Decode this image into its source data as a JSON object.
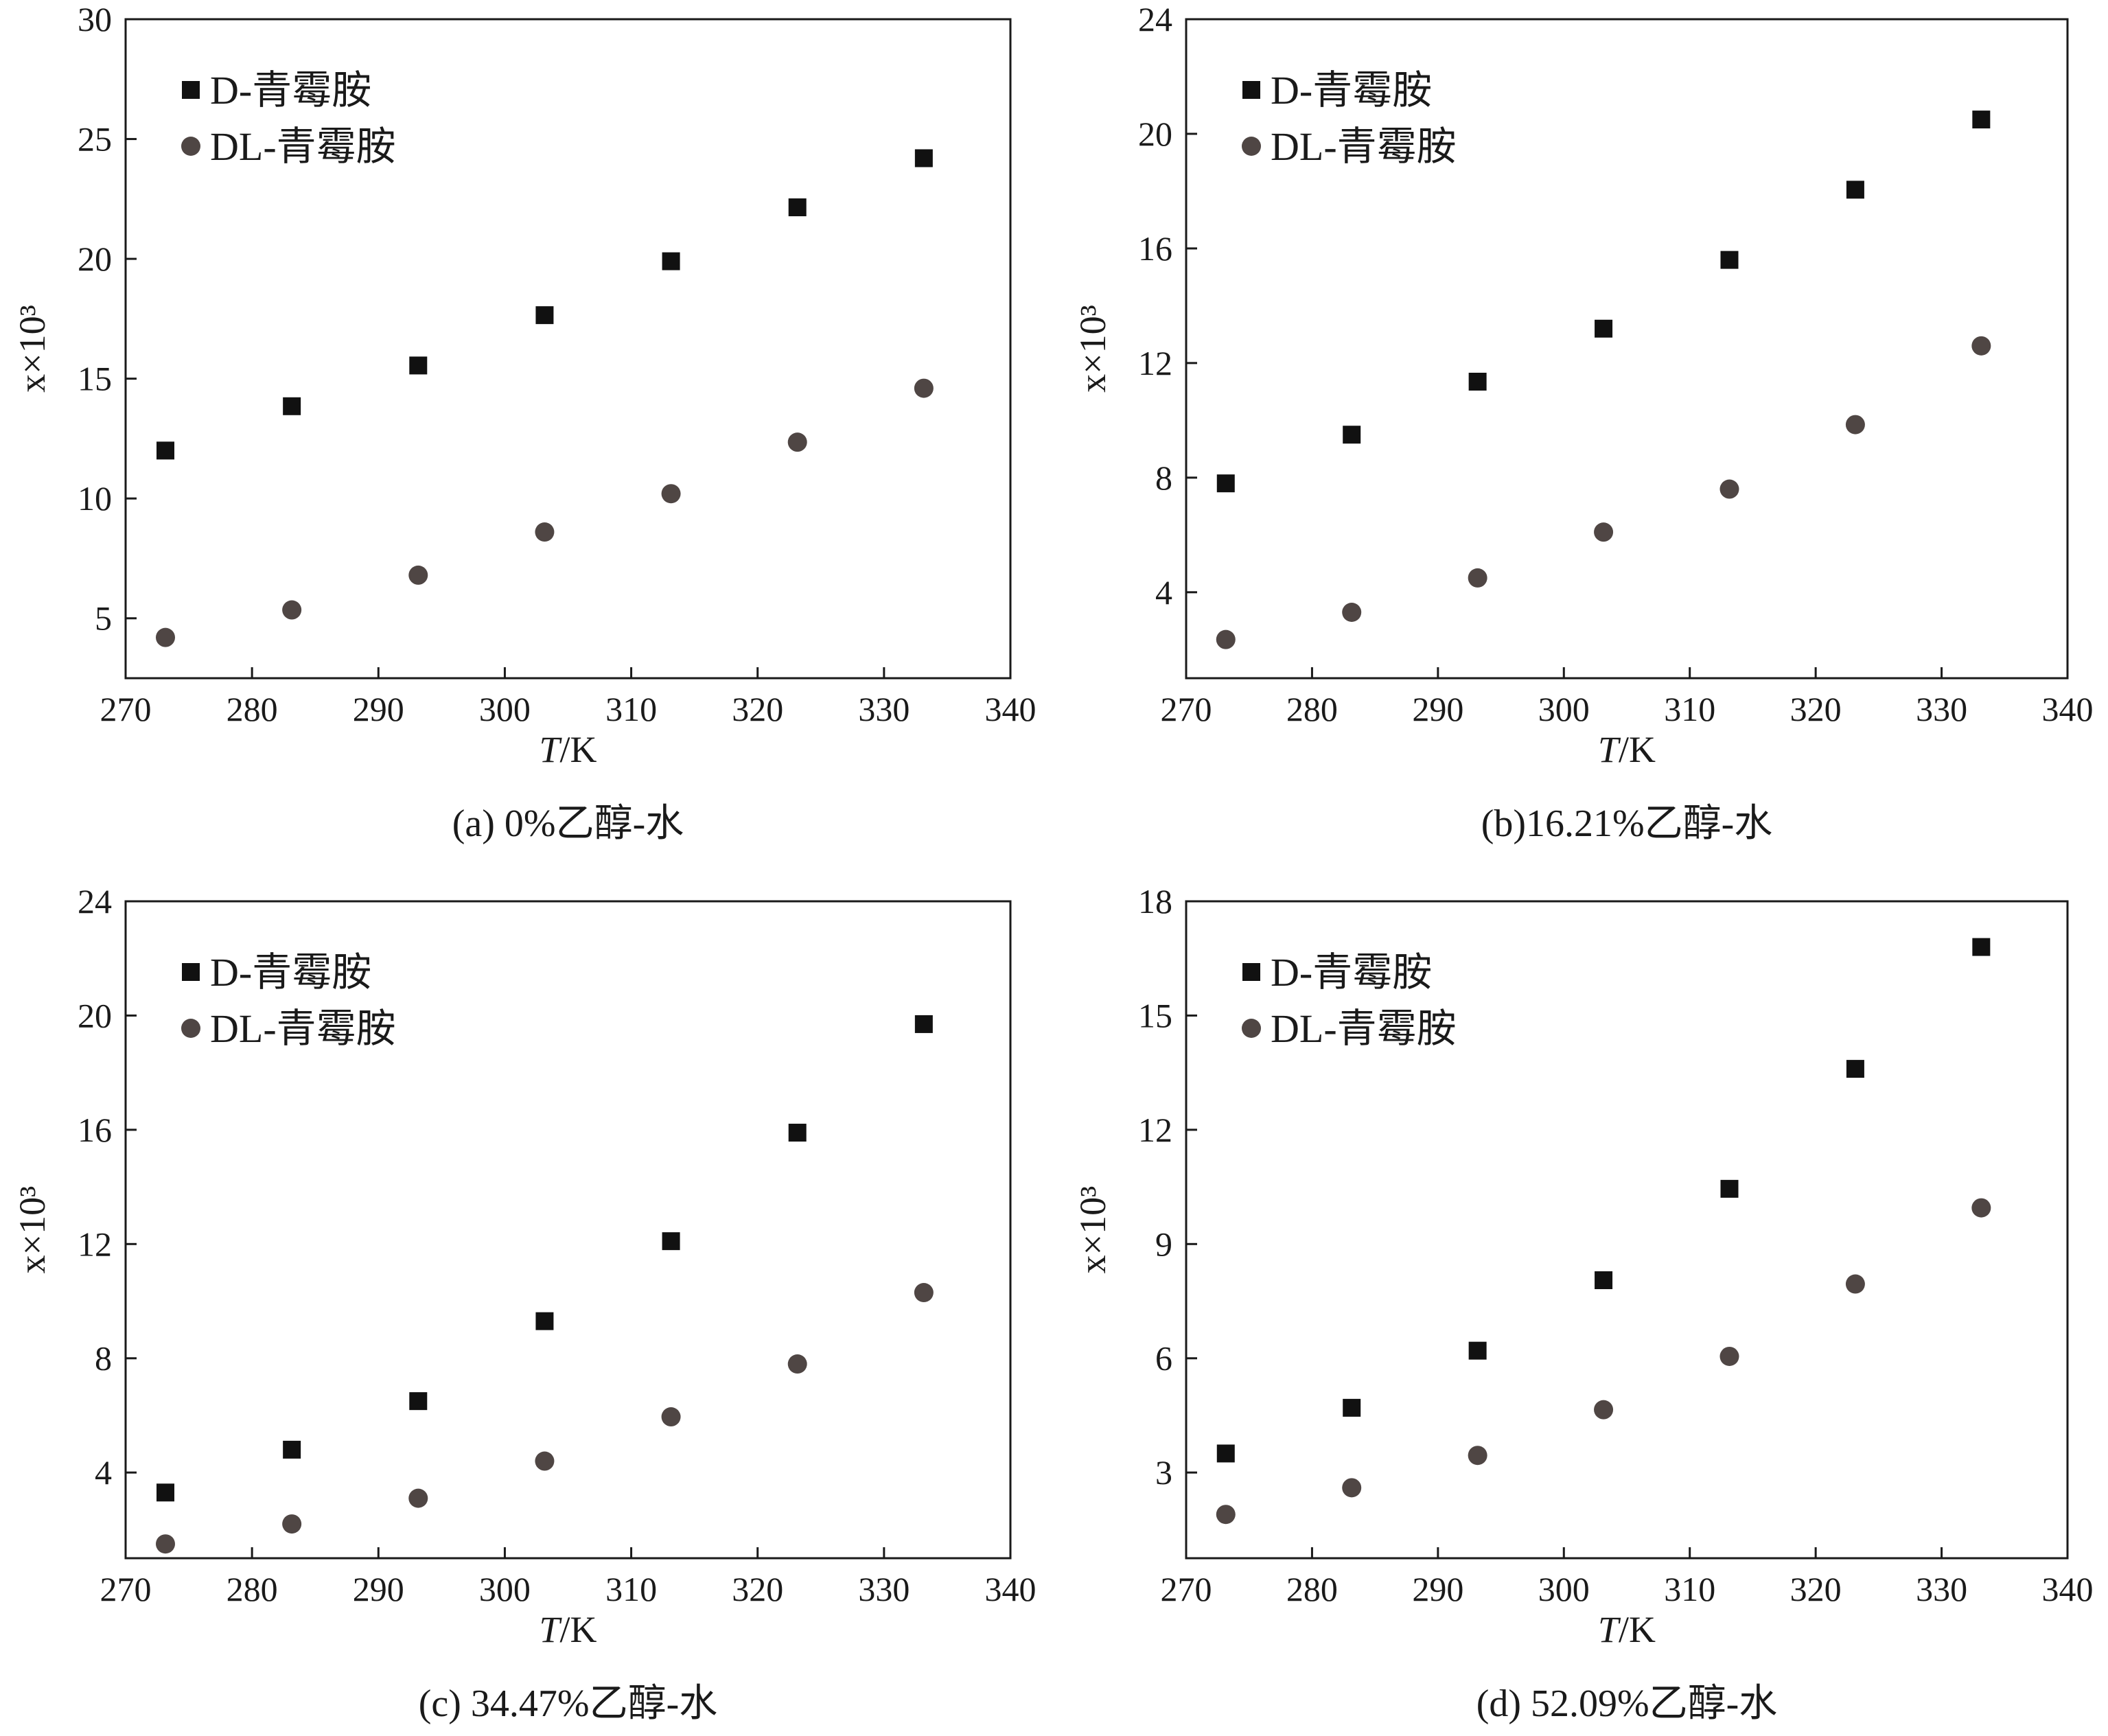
{
  "colors": {
    "series_square": "#111111",
    "series_circle": "#4f4644",
    "axis": "#1a1a1a"
  },
  "chart_data": [
    {
      "type": "scatter",
      "caption": "(a) 0%乙醇-水",
      "xlabel_italic": "T",
      "xlabel_rest": "/K",
      "ylabel": "x×10³",
      "xlim": [
        270,
        340
      ],
      "xticks": [
        270,
        280,
        290,
        300,
        310,
        320,
        330,
        340
      ],
      "ylim": [
        2.5,
        30
      ],
      "yticks": [
        5,
        10,
        15,
        20,
        25,
        30
      ],
      "legend_position": "top-left",
      "x": [
        273.15,
        283.15,
        293.15,
        303.15,
        313.15,
        323.15,
        333.15
      ],
      "series": [
        {
          "name": "D-青霉胺",
          "marker": "square",
          "values": [
            12.0,
            13.85,
            15.55,
            17.65,
            19.9,
            22.15,
            24.2
          ]
        },
        {
          "name": "DL-青霉胺",
          "marker": "circle",
          "values": [
            4.2,
            5.35,
            6.8,
            8.6,
            10.2,
            12.35,
            14.6
          ]
        }
      ]
    },
    {
      "type": "scatter",
      "caption": "(b)16.21%乙醇-水",
      "xlabel_italic": "T",
      "xlabel_rest": "/K",
      "ylabel": "x×10³",
      "xlim": [
        270,
        340
      ],
      "xticks": [
        270,
        280,
        290,
        300,
        310,
        320,
        330,
        340
      ],
      "ylim": [
        1.0,
        24
      ],
      "yticks": [
        4,
        8,
        12,
        16,
        20,
        24
      ],
      "legend_position": "top-left",
      "x": [
        273.15,
        283.15,
        293.15,
        303.15,
        313.15,
        323.15,
        333.15
      ],
      "series": [
        {
          "name": "D-青霉胺",
          "marker": "square",
          "values": [
            7.8,
            9.5,
            11.35,
            13.2,
            15.6,
            18.05,
            20.5
          ]
        },
        {
          "name": "DL-青霉胺",
          "marker": "circle",
          "values": [
            2.35,
            3.3,
            4.5,
            6.1,
            7.6,
            9.85,
            12.6
          ]
        }
      ]
    },
    {
      "type": "scatter",
      "caption": "(c) 34.47%乙醇-水",
      "xlabel_italic": "T",
      "xlabel_rest": "/K",
      "ylabel": "x×10³",
      "xlim": [
        270,
        340
      ],
      "xticks": [
        270,
        280,
        290,
        300,
        310,
        320,
        330,
        340
      ],
      "ylim": [
        1.0,
        24
      ],
      "yticks": [
        4,
        8,
        12,
        16,
        20,
        24
      ],
      "legend_position": "top-left",
      "x": [
        273.15,
        283.15,
        293.15,
        303.15,
        313.15,
        323.15,
        333.15
      ],
      "series": [
        {
          "name": "D-青霉胺",
          "marker": "square",
          "values": [
            3.3,
            4.8,
            6.5,
            9.3,
            12.1,
            15.9,
            19.7
          ]
        },
        {
          "name": "DL-青霉胺",
          "marker": "circle",
          "values": [
            1.5,
            2.2,
            3.1,
            4.4,
            5.95,
            7.8,
            10.3
          ]
        }
      ]
    },
    {
      "type": "scatter",
      "caption": "(d) 52.09%乙醇-水",
      "xlabel_italic": "T",
      "xlabel_rest": "/K",
      "ylabel": "x×10³",
      "xlim": [
        270,
        340
      ],
      "xticks": [
        270,
        280,
        290,
        300,
        310,
        320,
        330,
        340
      ],
      "ylim": [
        0.75,
        18
      ],
      "yticks": [
        3,
        6,
        9,
        12,
        15,
        18
      ],
      "legend_position": "top-left",
      "x": [
        273.15,
        283.15,
        293.15,
        303.15,
        313.15,
        323.15,
        333.15
      ],
      "series": [
        {
          "name": "D-青霉胺",
          "marker": "square",
          "values": [
            3.5,
            4.7,
            6.2,
            8.05,
            10.45,
            13.6,
            16.8
          ]
        },
        {
          "name": "DL-青霉胺",
          "marker": "circle",
          "values": [
            1.9,
            2.6,
            3.45,
            4.65,
            6.05,
            7.95,
            9.95
          ]
        }
      ]
    }
  ]
}
